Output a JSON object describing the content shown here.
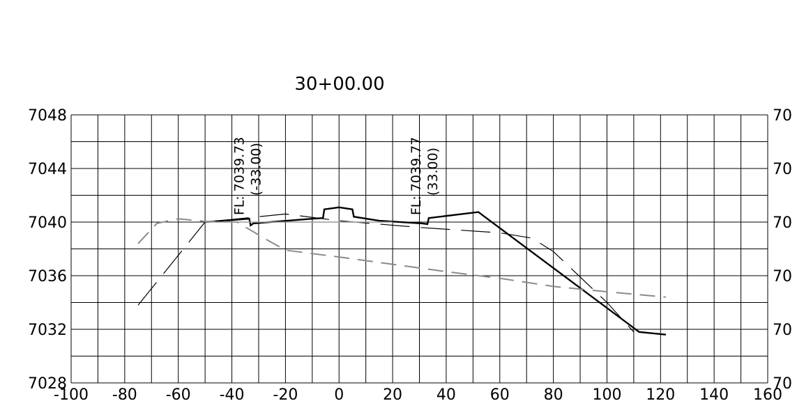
{
  "chart_data": {
    "type": "line",
    "title": "30+00.00",
    "xlim": [
      -100,
      160
    ],
    "ylim": [
      7028,
      7048
    ],
    "x_ticks": [
      "-100",
      "-80",
      "-60",
      "-40",
      "-20",
      "0",
      "20",
      "40",
      "60",
      "80",
      "100",
      "120",
      "140",
      "160"
    ],
    "y_ticks": [
      "7028",
      "7032",
      "7036",
      "7040",
      "7044",
      "7048"
    ],
    "y_ticks_right": [
      "70",
      "70",
      "70",
      "70",
      "70",
      "70"
    ],
    "grid": true,
    "annotations": [
      {
        "line1": "FL: 7039.73",
        "line2": "(-33.00)",
        "x": -33,
        "y": 7040.2
      },
      {
        "line1": "FL: 7039.77",
        "line2": "(33.00)",
        "x": 33,
        "y": 7040.2
      }
    ],
    "series": [
      {
        "style": "solid-black",
        "points": [
          [
            -50,
            7040.0
          ],
          [
            -33.5,
            7040.25
          ],
          [
            -33,
            7039.75
          ],
          [
            -32,
            7039.9
          ],
          [
            -10,
            7040.25
          ],
          [
            -6,
            7040.3
          ],
          [
            -5.5,
            7040.95
          ],
          [
            0,
            7041.1
          ],
          [
            5,
            7040.95
          ],
          [
            5.5,
            7040.4
          ],
          [
            15,
            7040.1
          ],
          [
            31,
            7039.9
          ],
          [
            33,
            7039.85
          ],
          [
            33.5,
            7040.3
          ],
          [
            52,
            7040.75
          ],
          [
            112,
            7031.8
          ],
          [
            122,
            7031.6
          ]
        ]
      },
      {
        "style": "dashed-black",
        "points": [
          [
            -75,
            7033.8
          ],
          [
            -50,
            7040.0
          ],
          [
            -20,
            7040.6
          ],
          [
            0,
            7040.1
          ],
          [
            30,
            7039.6
          ],
          [
            60,
            7039.2
          ],
          [
            72,
            7038.8
          ],
          [
            80,
            7037.8
          ],
          [
            100,
            7034.0
          ],
          [
            110,
            7031.8
          ]
        ]
      },
      {
        "style": "dashed-gray",
        "points": [
          [
            -75,
            7038.4
          ],
          [
            -68,
            7039.9
          ],
          [
            -60,
            7040.25
          ],
          [
            -50,
            7040.05
          ],
          [
            -38,
            7040.0
          ],
          [
            -28,
            7038.8
          ],
          [
            -20,
            7037.9
          ],
          [
            0,
            7037.4
          ],
          [
            40,
            7036.3
          ],
          [
            60,
            7035.8
          ],
          [
            80,
            7035.2
          ],
          [
            100,
            7034.8
          ],
          [
            122,
            7034.4
          ]
        ]
      },
      {
        "style": "solid-gray",
        "points": [
          [
            -50,
            7040.0
          ],
          [
            -20,
            7040.0
          ],
          [
            20,
            7040.0
          ]
        ]
      }
    ]
  }
}
